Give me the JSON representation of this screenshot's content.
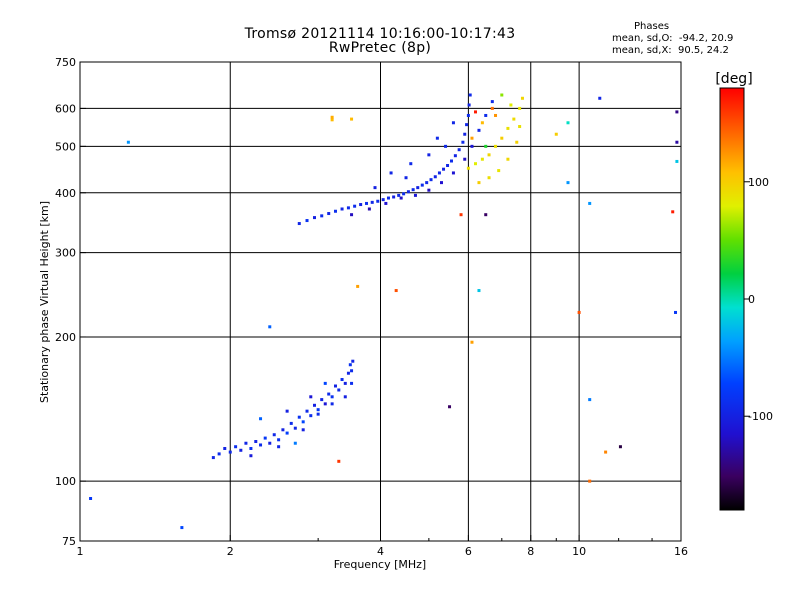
{
  "title_line1": "Tromsø 20121114 10:16:00-10:17:43",
  "title_line2": "RwPretec (8p)",
  "phase_stats": {
    "header": "Phases",
    "line_o": "mean, sd,O:  -94.2, 20.9",
    "line_x": "mean, sd,X:  90.5, 24.2"
  },
  "colorbar": {
    "unit_label": "[deg]",
    "ticks": [
      {
        "value": 100,
        "label": "100"
      },
      {
        "value": 0,
        "label": "0"
      },
      {
        "value": -100,
        "label": "-100"
      }
    ],
    "range": [
      -180,
      180
    ]
  },
  "chart_data": {
    "type": "scatter",
    "xlabel": "Frequency [MHz]",
    "ylabel": "Stationary phase Virtual Height [km]",
    "x_scale": "log",
    "y_scale": "log",
    "xlim": [
      1,
      16
    ],
    "ylim": [
      75,
      750
    ],
    "x_ticks": [
      {
        "value": 1,
        "label": "1"
      },
      {
        "value": 2,
        "label": "2"
      },
      {
        "value": 4,
        "label": "4"
      },
      {
        "value": 6,
        "label": "6"
      },
      {
        "value": 8,
        "label": "8"
      },
      {
        "value": 10,
        "label": "10"
      },
      {
        "value": 16,
        "label": "16"
      }
    ],
    "y_ticks": [
      {
        "value": 75,
        "label": "75"
      },
      {
        "value": 100,
        "label": "100"
      },
      {
        "value": 200,
        "label": "200"
      },
      {
        "value": 300,
        "label": "300"
      },
      {
        "value": 400,
        "label": "400"
      },
      {
        "value": 500,
        "label": "500"
      },
      {
        "value": 600,
        "label": "600"
      },
      {
        "value": 750,
        "label": "750"
      }
    ],
    "x_grid": [
      2,
      4,
      6,
      8,
      10
    ],
    "y_grid": [
      100,
      200,
      300,
      400,
      500,
      600
    ],
    "grid": true,
    "points": [
      [
        1.85,
        112,
        -95
      ],
      [
        1.9,
        114,
        -90
      ],
      [
        1.95,
        117,
        -98
      ],
      [
        2.0,
        115,
        -92
      ],
      [
        2.05,
        118,
        -88
      ],
      [
        2.1,
        116,
        -100
      ],
      [
        2.15,
        120,
        -95
      ],
      [
        2.2,
        117,
        -85
      ],
      [
        2.25,
        121,
        -97
      ],
      [
        2.3,
        119,
        -90
      ],
      [
        2.35,
        123,
        -80
      ],
      [
        2.4,
        120,
        -100
      ],
      [
        2.45,
        125,
        -93
      ],
      [
        2.5,
        122,
        -86
      ],
      [
        2.55,
        128,
        -99
      ],
      [
        2.6,
        126,
        -75
      ],
      [
        2.65,
        132,
        -90
      ],
      [
        2.7,
        129,
        -95
      ],
      [
        2.75,
        136,
        -85
      ],
      [
        2.8,
        133,
        -70
      ],
      [
        2.85,
        140,
        -92
      ],
      [
        2.9,
        137,
        -88
      ],
      [
        2.95,
        144,
        -99
      ],
      [
        3.0,
        141,
        -80
      ],
      [
        3.05,
        148,
        -95
      ],
      [
        3.1,
        145,
        -110
      ],
      [
        3.15,
        152,
        -90
      ],
      [
        3.2,
        150,
        -85
      ],
      [
        3.25,
        158,
        -98
      ],
      [
        3.3,
        155,
        -92
      ],
      [
        3.35,
        163,
        -88
      ],
      [
        3.4,
        160,
        -100
      ],
      [
        3.45,
        168,
        -95
      ],
      [
        3.5,
        170,
        -90
      ],
      [
        3.48,
        175,
        -85
      ],
      [
        3.52,
        178,
        -97
      ],
      [
        2.3,
        135,
        -60
      ],
      [
        2.6,
        140,
        -100
      ],
      [
        2.9,
        150,
        -110
      ],
      [
        3.1,
        160,
        -70
      ],
      [
        2.2,
        113,
        -105
      ],
      [
        2.5,
        118,
        -95
      ],
      [
        2.8,
        128,
        -100
      ],
      [
        3.0,
        138,
        -90
      ],
      [
        3.2,
        145,
        -93
      ],
      [
        3.4,
        150,
        -100
      ],
      [
        3.5,
        160,
        -88
      ],
      [
        2.7,
        120,
        -50
      ],
      [
        2.75,
        345,
        -95
      ],
      [
        2.85,
        350,
        -85
      ],
      [
        2.95,
        355,
        -100
      ],
      [
        3.05,
        358,
        -90
      ],
      [
        3.15,
        362,
        -95
      ],
      [
        3.25,
        366,
        -88
      ],
      [
        3.35,
        370,
        -96
      ],
      [
        3.45,
        372,
        -92
      ],
      [
        3.55,
        375,
        -90
      ],
      [
        3.65,
        378,
        -98
      ],
      [
        3.75,
        380,
        -88
      ],
      [
        3.85,
        382,
        -94
      ],
      [
        3.95,
        384,
        -90
      ],
      [
        4.05,
        387,
        -97
      ],
      [
        4.15,
        390,
        -91
      ],
      [
        4.25,
        392,
        -100
      ],
      [
        4.35,
        395,
        -93
      ],
      [
        4.45,
        398,
        -89
      ],
      [
        4.55,
        402,
        -96
      ],
      [
        4.65,
        406,
        -92
      ],
      [
        4.75,
        410,
        -98
      ],
      [
        4.85,
        415,
        -90
      ],
      [
        4.95,
        420,
        -94
      ],
      [
        5.05,
        426,
        -91
      ],
      [
        5.15,
        432,
        -97
      ],
      [
        5.25,
        440,
        -93
      ],
      [
        5.35,
        448,
        -99
      ],
      [
        5.45,
        456,
        -95
      ],
      [
        5.55,
        466,
        -90
      ],
      [
        5.65,
        478,
        -96
      ],
      [
        5.75,
        492,
        -94
      ],
      [
        5.85,
        510,
        -92
      ],
      [
        5.9,
        530,
        -98
      ],
      [
        5.95,
        555,
        -95
      ],
      [
        6.0,
        580,
        -90
      ],
      [
        6.02,
        610,
        -96
      ],
      [
        6.05,
        640,
        -92
      ],
      [
        3.5,
        360,
        -120
      ],
      [
        3.8,
        370,
        -125
      ],
      [
        4.1,
        380,
        -115
      ],
      [
        4.4,
        390,
        -118
      ],
      [
        4.7,
        395,
        -110
      ],
      [
        5.0,
        405,
        -120
      ],
      [
        5.3,
        420,
        -115
      ],
      [
        5.6,
        440,
        -112
      ],
      [
        5.9,
        470,
        -118
      ],
      [
        6.1,
        500,
        -110
      ],
      [
        6.3,
        540,
        -95
      ],
      [
        6.5,
        580,
        -90
      ],
      [
        6.7,
        620,
        -92
      ],
      [
        4.2,
        440,
        -95
      ],
      [
        4.6,
        460,
        -92
      ],
      [
        5.0,
        480,
        -98
      ],
      [
        5.4,
        500,
        -94
      ],
      [
        3.9,
        410,
        -100
      ],
      [
        4.5,
        430,
        -96
      ],
      [
        5.2,
        520,
        -92
      ],
      [
        5.6,
        560,
        -95
      ],
      [
        6.0,
        450,
        90
      ],
      [
        6.2,
        460,
        80
      ],
      [
        6.4,
        470,
        85
      ],
      [
        6.6,
        480,
        95
      ],
      [
        6.8,
        500,
        90
      ],
      [
        7.0,
        520,
        100
      ],
      [
        7.2,
        545,
        88
      ],
      [
        7.4,
        570,
        92
      ],
      [
        7.6,
        600,
        85
      ],
      [
        7.7,
        630,
        95
      ],
      [
        6.3,
        420,
        100
      ],
      [
        6.6,
        430,
        90
      ],
      [
        6.9,
        445,
        86
      ],
      [
        7.2,
        470,
        94
      ],
      [
        7.5,
        510,
        98
      ],
      [
        7.6,
        550,
        88
      ],
      [
        6.1,
        520,
        120
      ],
      [
        6.4,
        560,
        110
      ],
      [
        6.7,
        600,
        140
      ],
      [
        7.0,
        640,
        60
      ],
      [
        6.5,
        500,
        30
      ],
      [
        6.2,
        590,
        170
      ],
      [
        6.8,
        580,
        125
      ],
      [
        7.3,
        610,
        80
      ],
      [
        3.2,
        568,
        110
      ],
      [
        3.5,
        570,
        110
      ],
      [
        9.0,
        530,
        100
      ],
      [
        9.5,
        560,
        -5
      ],
      [
        10.5,
        380,
        -40
      ],
      [
        11.0,
        630,
        -95
      ],
      [
        1.25,
        510,
        -40
      ],
      [
        1.05,
        92,
        -80
      ],
      [
        1.6,
        80,
        -70
      ],
      [
        2.4,
        210,
        -60
      ],
      [
        3.6,
        255,
        120
      ],
      [
        4.3,
        250,
        150
      ],
      [
        6.3,
        250,
        -20
      ],
      [
        6.5,
        360,
        -150
      ],
      [
        5.8,
        360,
        160
      ],
      [
        5.5,
        143,
        -150
      ],
      [
        6.1,
        195,
        120
      ],
      [
        3.3,
        110,
        160
      ],
      [
        10.5,
        148,
        -50
      ],
      [
        11.3,
        115,
        130
      ],
      [
        12.1,
        118,
        -160
      ],
      [
        10.5,
        100,
        140
      ],
      [
        15.6,
        225,
        -80
      ],
      [
        15.4,
        365,
        170
      ],
      [
        15.7,
        590,
        -140
      ],
      [
        15.7,
        510,
        -130
      ],
      [
        15.7,
        465,
        -20
      ],
      [
        9.5,
        420,
        -40
      ],
      [
        10.0,
        225,
        150
      ],
      [
        3.2,
        575,
        115
      ]
    ]
  }
}
